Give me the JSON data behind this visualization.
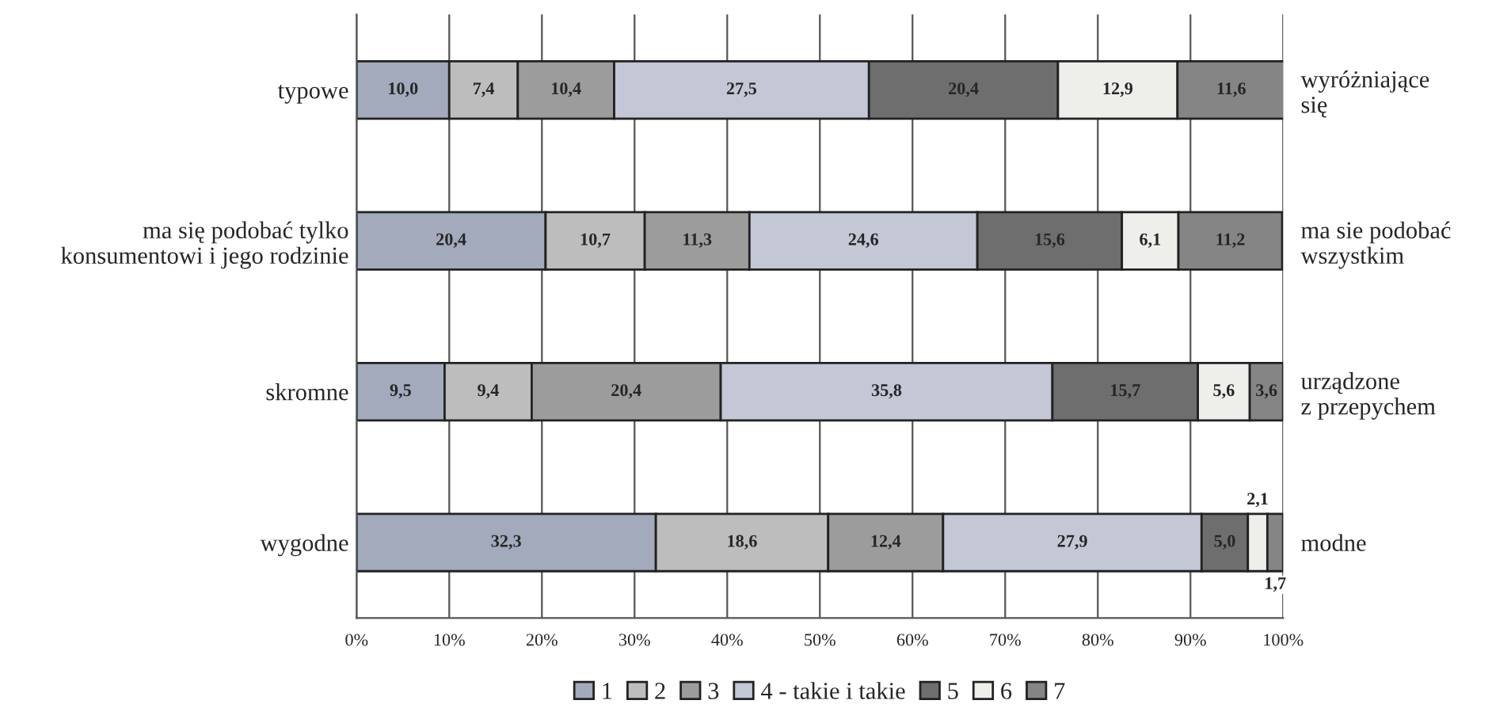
{
  "chart_data": {
    "type": "bar",
    "orientation": "horizontal",
    "stacked": true,
    "categories": [
      "typowe",
      "ma się podobać tylko\nkonsumentowi i jego rodzinie",
      "skromne",
      "wygodne"
    ],
    "y2_categories": [
      "wyróżniające\nsię",
      "ma sie podobać\nwszystkim",
      "urządzone\nz przepychem",
      "modne"
    ],
    "series": [
      {
        "name": "1",
        "color": "#a3aabb",
        "values": [
          10.0,
          20.4,
          9.5,
          32.3
        ],
        "value_labels": [
          "10,0",
          "20,4",
          "9,5",
          "32,3"
        ]
      },
      {
        "name": "2",
        "color": "#bdbdbd",
        "values": [
          7.4,
          10.7,
          9.4,
          18.6
        ],
        "value_labels": [
          "7,4",
          "10,7",
          "9,4",
          "18,6"
        ]
      },
      {
        "name": "3",
        "color": "#9c9c9c",
        "values": [
          10.4,
          11.3,
          20.4,
          12.4
        ],
        "value_labels": [
          "10,4",
          "11,3",
          "20,4",
          "12,4"
        ]
      },
      {
        "name": "4 - takie i takie",
        "color": "#c3c7d6",
        "values": [
          27.5,
          24.6,
          35.8,
          27.9
        ],
        "value_labels": [
          "27,5",
          "24,6",
          "35,8",
          "27,9"
        ]
      },
      {
        "name": "5",
        "color": "#6e6e6e",
        "values": [
          20.4,
          15.6,
          15.7,
          5.0
        ],
        "value_labels": [
          "20,4",
          "15,6",
          "15,7",
          "5,0"
        ]
      },
      {
        "name": "6",
        "color": "#eeeeea",
        "values": [
          12.9,
          6.1,
          5.6,
          2.1
        ],
        "value_labels": [
          "12,9",
          "6,1",
          "5,6",
          "2,1"
        ]
      },
      {
        "name": "7",
        "color": "#858585",
        "values": [
          11.6,
          11.2,
          3.6,
          1.7
        ],
        "value_labels": [
          "11,6",
          "11,2",
          "3,6",
          "1,7"
        ]
      }
    ],
    "xlim": [
      0,
      100
    ],
    "xticks": [
      {
        "value": 0,
        "label": "0%"
      },
      {
        "value": 10,
        "label": "10%"
      },
      {
        "value": 20,
        "label": "20%"
      },
      {
        "value": 30,
        "label": "30%"
      },
      {
        "value": 40,
        "label": "40%"
      },
      {
        "value": 50,
        "label": "50%"
      },
      {
        "value": 60,
        "label": "60%"
      },
      {
        "value": 70,
        "label": "70%"
      },
      {
        "value": 80,
        "label": "80%"
      },
      {
        "value": 90,
        "label": "90%"
      },
      {
        "value": 100,
        "label": "100%"
      }
    ],
    "grid": "x",
    "legend": "bottom"
  }
}
